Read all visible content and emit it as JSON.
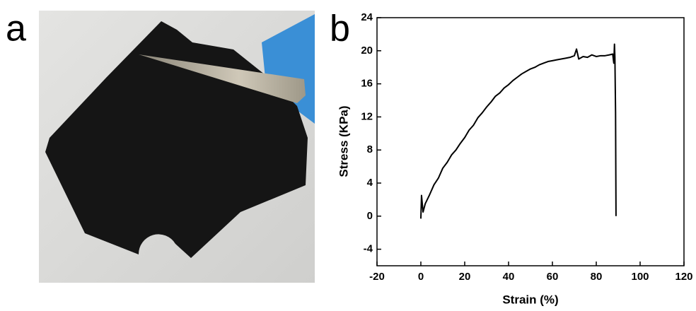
{
  "panel_labels": [
    "a",
    "b"
  ],
  "chart_data": {
    "type": "line",
    "x_label": "Strain (%)",
    "y_label": "Stress (KPa)",
    "x": [
      0,
      0.3,
      1,
      2,
      4,
      6,
      8,
      10,
      12,
      14,
      16,
      18,
      20,
      22,
      24,
      26,
      28,
      30,
      32,
      34,
      36,
      38,
      40,
      42,
      44,
      46,
      48,
      50,
      52,
      54,
      56,
      58,
      60,
      62,
      64,
      66,
      68,
      70,
      71,
      72,
      74,
      76,
      78,
      80,
      82,
      84,
      86,
      87.5,
      88,
      88.3,
      88.5,
      88.8,
      89
    ],
    "values": [
      -0.3,
      2.5,
      0.5,
      1.5,
      2.6,
      3.8,
      4.6,
      5.8,
      6.5,
      7.4,
      8.0,
      8.8,
      9.5,
      10.4,
      11.0,
      11.9,
      12.5,
      13.2,
      13.8,
      14.5,
      14.9,
      15.5,
      15.9,
      16.4,
      16.8,
      17.2,
      17.5,
      17.8,
      18.0,
      18.3,
      18.5,
      18.7,
      18.8,
      18.9,
      19.0,
      19.1,
      19.2,
      19.4,
      20.2,
      19.0,
      19.3,
      19.2,
      19.5,
      19.3,
      19.4,
      19.4,
      19.5,
      19.6,
      18.5,
      20.8,
      19.2,
      12.5,
      0
    ],
    "color": "#000000",
    "xlim": [
      -20,
      120
    ],
    "xticks": [
      -20,
      0,
      20,
      40,
      60,
      80,
      100,
      120
    ],
    "ylim": [
      -6,
      24
    ],
    "yticks": [
      -4,
      0,
      4,
      8,
      12,
      16,
      20,
      24
    ]
  }
}
